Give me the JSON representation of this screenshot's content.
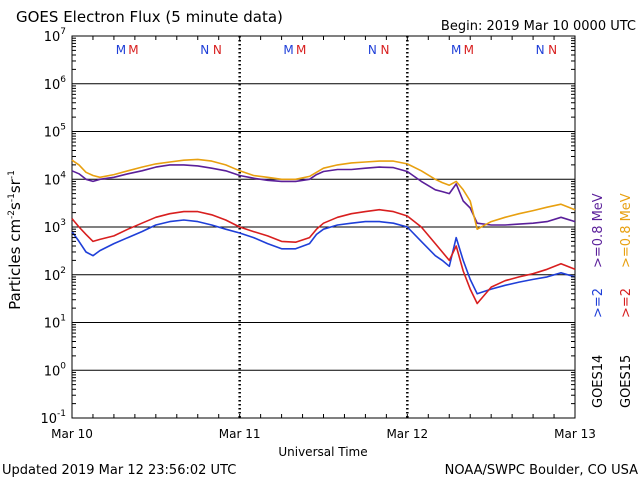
{
  "chart_data": {
    "type": "line",
    "title": "GOES Electron Flux (5 minute data)",
    "begin_label": "Begin: 2019 Mar 10 0000 UTC",
    "xlabel": "Universal Time",
    "ylabel": {
      "base": "Particles cm",
      "e1": "-2",
      "mid": "s",
      "e2": "-1",
      "end": "sr",
      "e3": "-1"
    },
    "updated": "Updated 2019 Mar 12 23:56:02 UTC",
    "credit": "NOAA/SWPC Boulder, CO USA",
    "x_unit": "hours since 2019 Mar 10 0000 UTC",
    "xlim": [
      0,
      72
    ],
    "x_ticks": [
      {
        "x": 0,
        "label": "Mar 10"
      },
      {
        "x": 24,
        "label": "Mar 11"
      },
      {
        "x": 48,
        "label": "Mar 12"
      },
      {
        "x": 72,
        "label": "Mar 13"
      }
    ],
    "y_scale": "log",
    "ylim": [
      0.1,
      10000000
    ],
    "y_ticks": [
      {
        "value": 10000000,
        "base": "10",
        "exp": "7"
      },
      {
        "value": 1000000,
        "base": "10",
        "exp": "6"
      },
      {
        "value": 100000,
        "base": "10",
        "exp": "5"
      },
      {
        "value": 10000,
        "base": "10",
        "exp": "4"
      },
      {
        "value": 1000,
        "base": "10",
        "exp": "3"
      },
      {
        "value": 100,
        "base": "10",
        "exp": "2"
      },
      {
        "value": 10,
        "base": "10",
        "exp": "1"
      },
      {
        "value": 1,
        "base": "10",
        "exp": "0"
      },
      {
        "value": 0.1,
        "base": "10",
        "exp": "-1"
      }
    ],
    "grid": "horizontal decades",
    "threshold": {
      "value": 1000,
      "style": "dashed"
    },
    "mn_markers": [
      {
        "x": 7.0,
        "letter": "M",
        "color": "#1f3fd8"
      },
      {
        "x": 8.8,
        "letter": "M",
        "color": "#d81f1f"
      },
      {
        "x": 19.0,
        "letter": "N",
        "color": "#1f3fd8"
      },
      {
        "x": 20.8,
        "letter": "N",
        "color": "#d81f1f"
      },
      {
        "x": 31.0,
        "letter": "M",
        "color": "#1f3fd8"
      },
      {
        "x": 32.8,
        "letter": "M",
        "color": "#d81f1f"
      },
      {
        "x": 43.0,
        "letter": "N",
        "color": "#1f3fd8"
      },
      {
        "x": 44.8,
        "letter": "N",
        "color": "#d81f1f"
      },
      {
        "x": 55.0,
        "letter": "M",
        "color": "#1f3fd8"
      },
      {
        "x": 56.8,
        "letter": "M",
        "color": "#d81f1f"
      },
      {
        "x": 67.0,
        "letter": "N",
        "color": "#1f3fd8"
      },
      {
        "x": 68.8,
        "letter": "N",
        "color": "#d81f1f"
      }
    ],
    "legend": [
      {
        "text": "GOES14",
        "color": "#000000"
      },
      {
        "text": ">=2",
        "color": "#1f3fd8"
      },
      {
        "text": ">=0.8  MeV",
        "color": "#5a1f9a"
      },
      {
        "text": "GOES15",
        "color": "#000000"
      },
      {
        "text": ">=2",
        "color": "#d81f1f"
      },
      {
        "text": ">=0.8  MeV",
        "color": "#e8a010"
      }
    ],
    "series": [
      {
        "name": "GOES14 >=0.8 MeV",
        "color": "#5a1f9a",
        "points": [
          [
            0,
            15000
          ],
          [
            1,
            13000
          ],
          [
            2,
            10000
          ],
          [
            3,
            9000
          ],
          [
            4,
            10000
          ],
          [
            6,
            11000
          ],
          [
            8,
            13000
          ],
          [
            10,
            15000
          ],
          [
            12,
            18000
          ],
          [
            14,
            20000
          ],
          [
            16,
            20000
          ],
          [
            18,
            19000
          ],
          [
            20,
            17000
          ],
          [
            22,
            15000
          ],
          [
            24,
            12000
          ],
          [
            26,
            10500
          ],
          [
            28,
            9500
          ],
          [
            30,
            9000
          ],
          [
            32,
            9000
          ],
          [
            34,
            10000
          ],
          [
            35,
            12500
          ],
          [
            36,
            14500
          ],
          [
            38,
            16000
          ],
          [
            40,
            16000
          ],
          [
            42,
            17000
          ],
          [
            44,
            18000
          ],
          [
            46,
            17500
          ],
          [
            48,
            14500
          ],
          [
            50,
            9000
          ],
          [
            52,
            6000
          ],
          [
            53,
            5500
          ],
          [
            54,
            5000
          ],
          [
            55,
            8000
          ],
          [
            56,
            3500
          ],
          [
            57,
            2500
          ],
          [
            58,
            1200
          ],
          [
            60,
            1100
          ],
          [
            62,
            1100
          ],
          [
            64,
            1150
          ],
          [
            66,
            1200
          ],
          [
            68,
            1300
          ],
          [
            70,
            1600
          ],
          [
            72,
            1300
          ]
        ]
      },
      {
        "name": "GOES15 >=0.8 MeV",
        "color": "#e8a010",
        "points": [
          [
            0,
            25000
          ],
          [
            1,
            20000
          ],
          [
            2,
            14000
          ],
          [
            3,
            12000
          ],
          [
            4,
            11000
          ],
          [
            6,
            12500
          ],
          [
            8,
            15000
          ],
          [
            10,
            18000
          ],
          [
            12,
            21000
          ],
          [
            14,
            23000
          ],
          [
            16,
            25000
          ],
          [
            18,
            26000
          ],
          [
            20,
            24000
          ],
          [
            22,
            20000
          ],
          [
            24,
            15000
          ],
          [
            26,
            12000
          ],
          [
            28,
            11000
          ],
          [
            30,
            10000
          ],
          [
            32,
            10000
          ],
          [
            34,
            11500
          ],
          [
            35,
            14000
          ],
          [
            36,
            17000
          ],
          [
            38,
            20000
          ],
          [
            40,
            22000
          ],
          [
            42,
            23000
          ],
          [
            44,
            24000
          ],
          [
            46,
            24000
          ],
          [
            48,
            21000
          ],
          [
            50,
            15000
          ],
          [
            52,
            10000
          ],
          [
            53,
            8500
          ],
          [
            54,
            7500
          ],
          [
            55,
            9000
          ],
          [
            56,
            6000
          ],
          [
            57,
            3500
          ],
          [
            58,
            900
          ],
          [
            60,
            1300
          ],
          [
            62,
            1600
          ],
          [
            64,
            1900
          ],
          [
            66,
            2200
          ],
          [
            68,
            2600
          ],
          [
            70,
            3000
          ],
          [
            72,
            2300
          ]
        ]
      },
      {
        "name": "GOES14 >=2 MeV",
        "color": "#1f3fd8",
        "points": [
          [
            0,
            800
          ],
          [
            1,
            500
          ],
          [
            2,
            300
          ],
          [
            3,
            250
          ],
          [
            4,
            320
          ],
          [
            6,
            450
          ],
          [
            8,
            600
          ],
          [
            10,
            800
          ],
          [
            12,
            1100
          ],
          [
            14,
            1300
          ],
          [
            16,
            1400
          ],
          [
            18,
            1300
          ],
          [
            20,
            1100
          ],
          [
            22,
            900
          ],
          [
            24,
            750
          ],
          [
            26,
            600
          ],
          [
            28,
            450
          ],
          [
            30,
            350
          ],
          [
            32,
            350
          ],
          [
            34,
            450
          ],
          [
            35,
            700
          ],
          [
            36,
            900
          ],
          [
            38,
            1100
          ],
          [
            40,
            1200
          ],
          [
            42,
            1300
          ],
          [
            44,
            1300
          ],
          [
            46,
            1200
          ],
          [
            48,
            1000
          ],
          [
            50,
            500
          ],
          [
            52,
            250
          ],
          [
            53,
            200
          ],
          [
            54,
            150
          ],
          [
            55,
            600
          ],
          [
            56,
            200
          ],
          [
            57,
            80
          ],
          [
            58,
            40
          ],
          [
            60,
            50
          ],
          [
            62,
            60
          ],
          [
            64,
            70
          ],
          [
            66,
            80
          ],
          [
            68,
            90
          ],
          [
            70,
            110
          ],
          [
            72,
            90
          ]
        ]
      },
      {
        "name": "GOES15 >=2 MeV",
        "color": "#d81f1f",
        "points": [
          [
            0,
            1500
          ],
          [
            1,
            1000
          ],
          [
            2,
            700
          ],
          [
            3,
            500
          ],
          [
            4,
            550
          ],
          [
            6,
            650
          ],
          [
            8,
            900
          ],
          [
            10,
            1200
          ],
          [
            12,
            1600
          ],
          [
            14,
            1900
          ],
          [
            16,
            2100
          ],
          [
            18,
            2100
          ],
          [
            20,
            1800
          ],
          [
            22,
            1400
          ],
          [
            24,
            1000
          ],
          [
            26,
            800
          ],
          [
            28,
            650
          ],
          [
            30,
            500
          ],
          [
            32,
            480
          ],
          [
            34,
            600
          ],
          [
            35,
            900
          ],
          [
            36,
            1200
          ],
          [
            38,
            1600
          ],
          [
            40,
            1900
          ],
          [
            42,
            2100
          ],
          [
            44,
            2300
          ],
          [
            46,
            2100
          ],
          [
            48,
            1700
          ],
          [
            50,
            1000
          ],
          [
            52,
            450
          ],
          [
            53,
            300
          ],
          [
            54,
            200
          ],
          [
            55,
            400
          ],
          [
            56,
            120
          ],
          [
            57,
            50
          ],
          [
            58,
            25
          ],
          [
            60,
            55
          ],
          [
            62,
            75
          ],
          [
            64,
            90
          ],
          [
            66,
            105
          ],
          [
            68,
            130
          ],
          [
            70,
            170
          ],
          [
            72,
            130
          ]
        ]
      }
    ]
  }
}
